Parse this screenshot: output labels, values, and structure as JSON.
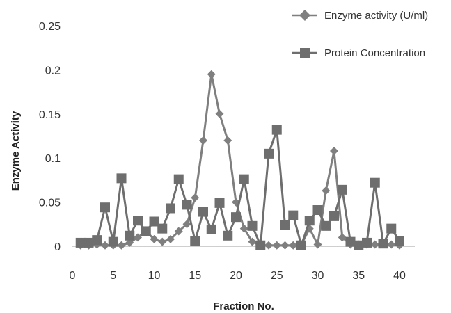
{
  "chart_data": {
    "type": "line",
    "xlabel": "Fraction No.",
    "ylabel": "Enzyme Activity",
    "xlim": [
      0,
      40
    ],
    "ylim": [
      0,
      0.25
    ],
    "xticks": [
      0,
      5,
      10,
      15,
      20,
      25,
      30,
      35,
      40
    ],
    "yticks": [
      0,
      0.05,
      0.1,
      0.15,
      0.2,
      0.25
    ],
    "ytick_labels": [
      "0",
      "0.05",
      "0.1",
      "0.15",
      "0.2",
      "0.25"
    ],
    "grid": false,
    "legend_position": "top-right",
    "series": [
      {
        "name": "Enzyme activity (U/ml)",
        "marker": "diamond",
        "color": "#7f7f7f",
        "x": [
          1,
          2,
          3,
          4,
          5,
          6,
          7,
          8,
          9,
          10,
          11,
          12,
          13,
          14,
          15,
          16,
          17,
          18,
          19,
          20,
          21,
          22,
          23,
          24,
          25,
          26,
          27,
          28,
          29,
          30,
          31,
          32,
          33,
          34,
          35,
          36,
          37,
          38,
          39,
          40
        ],
        "y": [
          0.001,
          0.001,
          0.002,
          0.001,
          0.001,
          0.001,
          0.004,
          0.01,
          0.017,
          0.008,
          0.005,
          0.008,
          0.017,
          0.025,
          0.055,
          0.12,
          0.195,
          0.15,
          0.12,
          0.05,
          0.02,
          0.005,
          0.001,
          0.001,
          0.001,
          0.001,
          0.001,
          0.002,
          0.02,
          0.002,
          0.063,
          0.108,
          0.01,
          0.002,
          0.002,
          0.002,
          0.002,
          0.002,
          0.002,
          0.001
        ]
      },
      {
        "name": "Protein Concentration",
        "marker": "square",
        "color": "#6e6e6e",
        "x": [
          1,
          2,
          3,
          4,
          5,
          6,
          7,
          8,
          9,
          10,
          11,
          12,
          13,
          14,
          15,
          16,
          17,
          18,
          19,
          20,
          21,
          22,
          23,
          24,
          25,
          26,
          27,
          28,
          29,
          30,
          31,
          32,
          33,
          34,
          35,
          36,
          37,
          38,
          39,
          40
        ],
        "y": [
          0.004,
          0.004,
          0.007,
          0.044,
          0.005,
          0.077,
          0.012,
          0.029,
          0.017,
          0.028,
          0.02,
          0.043,
          0.076,
          0.047,
          0.006,
          0.039,
          0.019,
          0.049,
          0.012,
          0.033,
          0.076,
          0.023,
          0.001,
          0.105,
          0.132,
          0.024,
          0.035,
          0.001,
          0.029,
          0.041,
          0.023,
          0.034,
          0.064,
          0.005,
          0.001,
          0.004,
          0.072,
          0.003,
          0.02,
          0.006
        ]
      }
    ]
  }
}
